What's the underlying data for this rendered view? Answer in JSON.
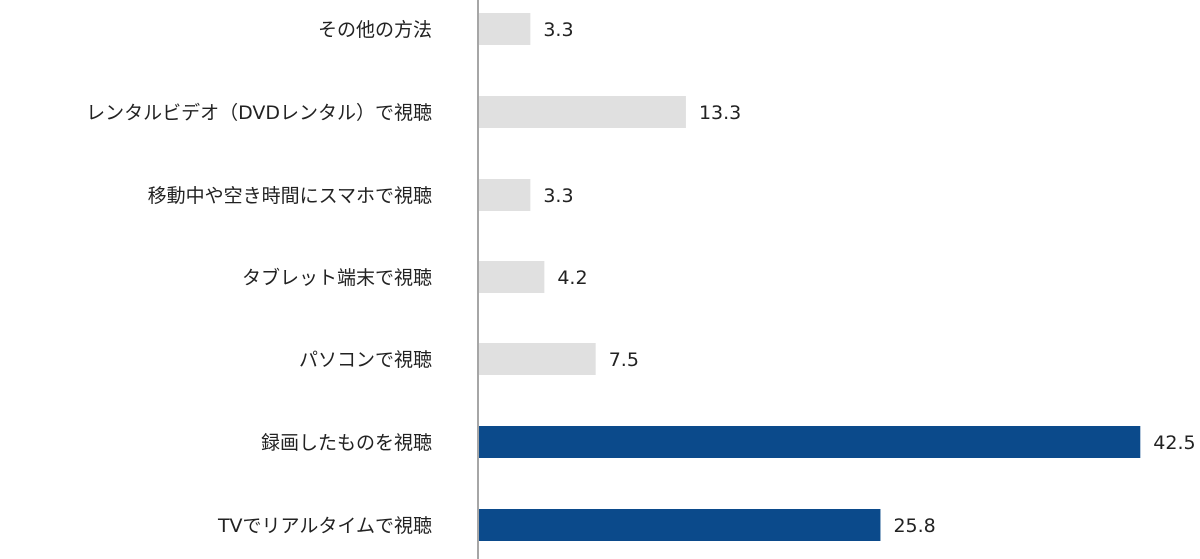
{
  "chart_data": {
    "type": "bar",
    "orientation": "horizontal",
    "title": "",
    "xlabel": "",
    "ylabel": "",
    "xlim": [
      0,
      43
    ],
    "grid": false,
    "legend": "none",
    "categories": [
      "その他の方法",
      "レンタルビデオ（DVDレンタル）で視聴",
      "移動中や空き時間にスマホで視聴",
      "タブレット端末で視聴",
      "パソコンで視聴",
      "録画したものを視聴",
      "TVでリアルタイムで視聴"
    ],
    "values": [
      3.3,
      13.3,
      3.3,
      4.2,
      7.5,
      42.5,
      25.8
    ],
    "value_labels": [
      "3.3",
      "13.3",
      "3.3",
      "4.2",
      "7.5",
      "42.5",
      "25.8"
    ],
    "highlighted": [
      false,
      false,
      false,
      false,
      false,
      true,
      true
    ],
    "colors": {
      "normal": "#e0e0e0",
      "highlight": "#0b4a8b",
      "axis": "#888888",
      "text": "#222222"
    }
  }
}
